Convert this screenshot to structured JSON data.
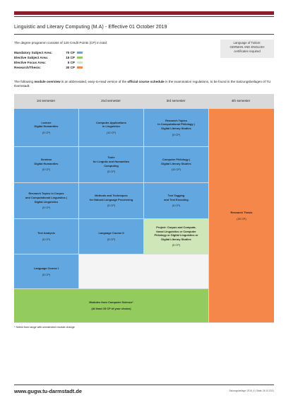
{
  "title": "Linguistic and Literary Computing (M.A) - Effective 01 October 2019",
  "intro": "The degree programm consists of 120 Credit Points (CP) in total:",
  "credits": [
    {
      "label": "Mandatory Subject Area:",
      "cp": "70 CP",
      "color": "#62a7df"
    },
    {
      "label": "Elective Subject Area:",
      "cp": "15 CP",
      "color": "#93cb5e"
    },
    {
      "label": "Elective Focus Area:",
      "cp": "5 CP",
      "color": "#cfe6b8"
    },
    {
      "label": "Research/Thesis:",
      "cp": "30 CP",
      "color": "#f5874a"
    }
  ],
  "tuition": {
    "line1": "Language of Tuition:",
    "line2": "GERMAN AND ENGLISH",
    "line3": "certificates required"
  },
  "note": {
    "part1": "The following ",
    "bold1": "module overview",
    "part2": " is an abbreviated, easy-to-read version of the ",
    "bold2": "official course schedule",
    "part3": " in the examination regulations, to be found in the Satzungsbeilagen of TU Darmstadt:"
  },
  "semesters": [
    "1st semester",
    "2nd semester",
    "3rd semester",
    "4th semester"
  ],
  "modules": {
    "m11": {
      "lines": [
        "Lecture",
        "Digital Humanities"
      ],
      "cp": "(5 CP)"
    },
    "m12": {
      "lines": [
        "Seminar",
        "Digital Humanities"
      ],
      "cp": "(5 CP)"
    },
    "m13": {
      "lines": [
        "Research Topics in Corpus",
        "and Computational Linguistics |",
        "Digital Linguistics"
      ],
      "cp": "(5 CP)"
    },
    "m14": {
      "lines": [
        "Text Analysis"
      ],
      "cp": "(5 CP)"
    },
    "m15": {
      "lines": [
        "Language Course I"
      ],
      "cp": "(5 CP)"
    },
    "m21": {
      "lines": [
        "Computer Applications",
        "in Linguistics"
      ],
      "cp": "(10 CP)"
    },
    "m22": {
      "lines": [
        "Tools",
        "for Lingutic and Humanities",
        "Computing"
      ],
      "cp": "(5 CP)"
    },
    "m23": {
      "lines": [
        "Methods and Techniques",
        "for Natural Language Processing"
      ],
      "cp": "(5 CP)"
    },
    "m24": {
      "lines": [
        "Language Course II"
      ],
      "cp": "(5 CP)"
    },
    "m31": {
      "lines": [
        "Research Topics",
        "in Computational Philology |",
        "Digital Literary Studies"
      ],
      "cp": "(5 CP)"
    },
    "m32": {
      "lines": [
        "Computer Philology |",
        "Digital Literary Studies"
      ],
      "cp": "(10 CP)"
    },
    "m33": {
      "lines": [
        "Text Tagging",
        "and Text Encoding"
      ],
      "cp": "(5 CP)"
    },
    "m34": {
      "lines": [
        "Project: Corpus and Computa-",
        "tional Linguistics or Computer",
        "Philology or Digital Linguistics or",
        "Digital Literary Studies"
      ],
      "cp": "(5 CP)"
    },
    "m4": {
      "lines": [
        "Research Thesis"
      ],
      "cp": "(30 CP)"
    },
    "mcs": {
      "lines": [
        "Modules from Computer Science*"
      ],
      "cp": "(At least 15 CP of your choice)"
    }
  },
  "footnote": "*  Select from range with unrestricted module change",
  "url": "www.gugw.tu-darmstadt.de",
  "meta": "Satzungsbeilage: 2019_II   |   Stats: 26.10.2021"
}
